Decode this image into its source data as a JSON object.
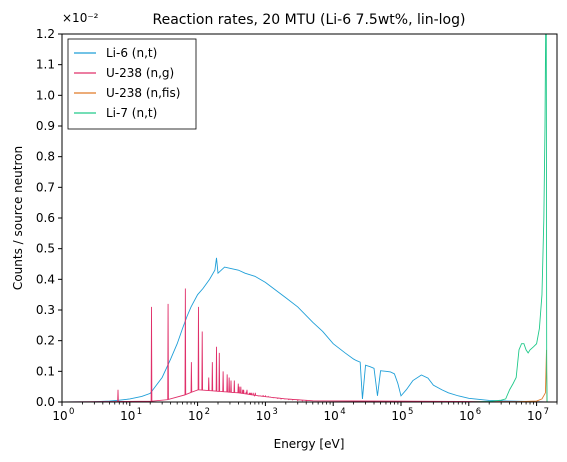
{
  "chart_data": {
    "type": "line",
    "title": "Reaction rates, 20 MTU (Li-6 7.5wt%, lin-log)",
    "xlabel": "Energy [eV]",
    "ylabel": "Counts / source neutron",
    "x_scale": "log",
    "xlim": [
      1,
      20000000
    ],
    "ylim": [
      0,
      0.012
    ],
    "y_offset_text": "×10⁻²",
    "y_ticks": [
      0.0,
      0.001,
      0.002,
      0.003,
      0.004,
      0.005,
      0.006,
      0.007,
      0.008,
      0.009,
      0.01,
      0.011,
      0.012
    ],
    "y_tick_labels": [
      "0.0",
      "0.1",
      "0.2",
      "0.3",
      "0.4",
      "0.5",
      "0.6",
      "0.7",
      "0.8",
      "0.9",
      "1.0",
      "1.1",
      "1.2"
    ],
    "x_ticks": [
      1,
      10,
      100,
      1000,
      10000,
      100000,
      1000000,
      10000000
    ],
    "x_tick_labels": [
      {
        "base": "10",
        "exp": "0"
      },
      {
        "base": "10",
        "exp": "1"
      },
      {
        "base": "10",
        "exp": "2"
      },
      {
        "base": "10",
        "exp": "3"
      },
      {
        "base": "10",
        "exp": "4"
      },
      {
        "base": "10",
        "exp": "5"
      },
      {
        "base": "10",
        "exp": "6"
      },
      {
        "base": "10",
        "exp": "7"
      }
    ],
    "grid": false,
    "legend_position": "top-left",
    "series": [
      {
        "name": "Li-6 (n,t)",
        "color": "#1f9fd8",
        "points": [
          [
            1,
            0.0
          ],
          [
            3,
            1e-05
          ],
          [
            5,
            3e-05
          ],
          [
            7,
            6e-05
          ],
          [
            10,
            0.0001
          ],
          [
            15,
            0.00018
          ],
          [
            20,
            0.00028
          ],
          [
            30,
            0.0008
          ],
          [
            40,
            0.0014
          ],
          [
            50,
            0.0019
          ],
          [
            60,
            0.0024
          ],
          [
            70,
            0.0028
          ],
          [
            80,
            0.0031
          ],
          [
            100,
            0.0035
          ],
          [
            120,
            0.0037
          ],
          [
            150,
            0.004
          ],
          [
            180,
            0.0043
          ],
          [
            190,
            0.0047
          ],
          [
            200,
            0.0042
          ],
          [
            250,
            0.0044
          ],
          [
            300,
            0.00436
          ],
          [
            400,
            0.0043
          ],
          [
            500,
            0.0042
          ],
          [
            700,
            0.0041
          ],
          [
            1000,
            0.0039
          ],
          [
            2000,
            0.0034
          ],
          [
            3000,
            0.0031
          ],
          [
            5000,
            0.0026
          ],
          [
            7000,
            0.0023
          ],
          [
            10000,
            0.0019
          ],
          [
            15000,
            0.0016
          ],
          [
            20000,
            0.0014
          ],
          [
            22000,
            0.00135
          ],
          [
            25000,
            0.0013
          ],
          [
            27000,
            0.0001
          ],
          [
            30000,
            0.0012
          ],
          [
            35000,
            0.00115
          ],
          [
            40000,
            0.0011
          ],
          [
            45000,
            0.0002
          ],
          [
            50000,
            0.00102
          ],
          [
            60000,
            0.001
          ],
          [
            70000,
            0.00098
          ],
          [
            80000,
            0.00092
          ],
          [
            90000,
            0.0006
          ],
          [
            100000,
            0.0002
          ],
          [
            120000,
            0.0004
          ],
          [
            150000,
            0.0007
          ],
          [
            200000,
            0.00088
          ],
          [
            250000,
            0.00078
          ],
          [
            300000,
            0.00055
          ],
          [
            400000,
            0.0004
          ],
          [
            500000,
            0.0003
          ],
          [
            700000,
            0.0002
          ],
          [
            1000000,
            0.00012
          ],
          [
            2000000,
            5e-05
          ],
          [
            4000000,
            3e-05
          ],
          [
            7000000,
            2e-05
          ],
          [
            10000000,
            1e-05
          ],
          [
            14000000,
            0.0
          ],
          [
            20000000,
            0.0
          ]
        ]
      },
      {
        "name": "U-238 (n,g)",
        "color": "#e0306a",
        "baseline": [
          [
            1,
            0.0
          ],
          [
            30,
            3e-05
          ],
          [
            60,
            0.0002
          ],
          [
            100,
            0.0004
          ],
          [
            200,
            0.00035
          ],
          [
            400,
            0.0003
          ],
          [
            800,
            0.0002
          ],
          [
            2000,
            0.0001
          ],
          [
            5000,
            4e-05
          ],
          [
            10000,
            2e-05
          ],
          [
            100000,
            0.0
          ],
          [
            20000000,
            0.0
          ]
        ],
        "peaks": [
          [
            6.7,
            0.0004
          ],
          [
            20.9,
            0.0031
          ],
          [
            36.7,
            0.0032
          ],
          [
            66,
            0.0037
          ],
          [
            81,
            0.0013
          ],
          [
            103,
            0.0031
          ],
          [
            117,
            0.0023
          ],
          [
            146,
            0.0008
          ],
          [
            165,
            0.0013
          ],
          [
            190,
            0.0018
          ],
          [
            209,
            0.0016
          ],
          [
            238,
            0.001
          ],
          [
            273,
            0.0009
          ],
          [
            292,
            0.0008
          ],
          [
            311,
            0.0007
          ],
          [
            348,
            0.0007
          ],
          [
            398,
            0.0006
          ],
          [
            410,
            0.0005
          ],
          [
            434,
            0.0005
          ],
          [
            463,
            0.0004
          ],
          [
            478,
            0.0004
          ],
          [
            518,
            0.0003
          ],
          [
            535,
            0.0004
          ],
          [
            580,
            0.0003
          ],
          [
            595,
            0.0003
          ],
          [
            620,
            0.0003
          ],
          [
            660,
            0.0003
          ],
          [
            690,
            0.0002
          ],
          [
            710,
            0.0003
          ],
          [
            780,
            0.0002
          ],
          [
            820,
            0.0002
          ],
          [
            850,
            0.0002
          ],
          [
            900,
            0.0002
          ],
          [
            940,
            0.0002
          ],
          [
            1000,
            0.0002
          ],
          [
            1100,
            0.00018
          ],
          [
            1200,
            0.00016
          ],
          [
            1300,
            0.00014
          ],
          [
            1500,
            0.00012
          ],
          [
            1700,
            0.0001
          ],
          [
            1900,
            0.0001
          ],
          [
            2200,
            8e-05
          ],
          [
            2500,
            7e-05
          ],
          [
            3000,
            5e-05
          ],
          [
            3500,
            4e-05
          ],
          [
            4000,
            3e-05
          ]
        ]
      },
      {
        "name": "U-238 (n,fis)",
        "color": "#e07a28",
        "points": [
          [
            1,
            0.0
          ],
          [
            1000000,
            0.0
          ],
          [
            5000000,
            1e-05
          ],
          [
            10000000,
            3e-05
          ],
          [
            12000000,
            0.0001
          ],
          [
            13500000,
            0.0003
          ],
          [
            14000000,
            0.0017
          ],
          [
            14200000,
            0.0
          ],
          [
            20000000,
            0.0
          ]
        ]
      },
      {
        "name": "Li-7 (n,t)",
        "color": "#20c98a",
        "points": [
          [
            1,
            0.0
          ],
          [
            1000000,
            0.0
          ],
          [
            2000000,
            2e-05
          ],
          [
            3000000,
            6e-05
          ],
          [
            3500000,
            0.0001
          ],
          [
            4000000,
            0.0004
          ],
          [
            4500000,
            0.0006
          ],
          [
            5000000,
            0.0008
          ],
          [
            5500000,
            0.0017
          ],
          [
            6000000,
            0.0019
          ],
          [
            6500000,
            0.0019
          ],
          [
            7000000,
            0.0017
          ],
          [
            7500000,
            0.0016
          ],
          [
            8000000,
            0.0017
          ],
          [
            9000000,
            0.0018
          ],
          [
            10000000,
            0.0019
          ],
          [
            11000000,
            0.0024
          ],
          [
            12000000,
            0.0035
          ],
          [
            12800000,
            0.006
          ],
          [
            13300000,
            0.009
          ],
          [
            13600000,
            0.012
          ],
          [
            13900000,
            0.012
          ],
          [
            14100000,
            0.001
          ],
          [
            14300000,
            0.0
          ],
          [
            20000000,
            0.0
          ]
        ]
      }
    ]
  }
}
